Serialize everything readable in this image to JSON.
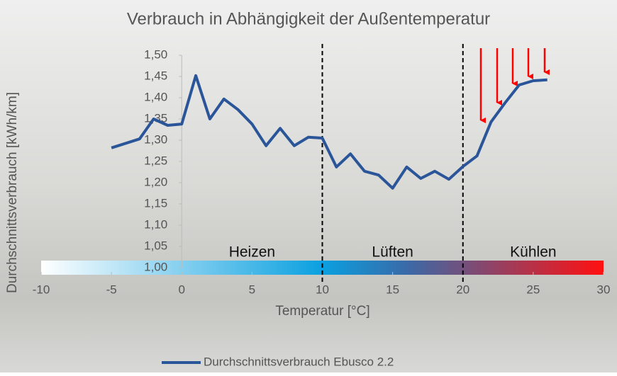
{
  "chart_data": {
    "type": "line",
    "title": "Verbrauch in Abhängigkeit der Außentemperatur",
    "x_label": "Temperatur [°C]",
    "y_label": "Durchschnittsverbrauch [kWh/km]",
    "x": [
      -5,
      -3,
      -2,
      -1,
      0,
      1,
      2,
      3,
      4,
      5,
      6,
      7,
      8,
      9,
      10,
      11,
      12,
      13,
      14,
      15,
      16,
      17,
      18,
      19,
      20,
      21,
      22,
      23,
      24,
      25,
      26
    ],
    "series": [
      {
        "name": "Durchschnittsverbrauch Ebusco 2.2",
        "color": "#2a5599",
        "values": [
          1.282,
          1.303,
          1.35,
          1.335,
          1.338,
          1.452,
          1.35,
          1.397,
          1.372,
          1.338,
          1.287,
          1.328,
          1.287,
          1.307,
          1.305,
          1.237,
          1.268,
          1.227,
          1.218,
          1.187,
          1.237,
          1.21,
          1.227,
          1.208,
          1.238,
          1.263,
          1.343,
          1.388,
          1.43,
          1.44,
          1.442
        ]
      }
    ],
    "xlim": [
      -10,
      30
    ],
    "xticks": [
      -10,
      -5,
      0,
      5,
      10,
      15,
      20,
      25,
      30
    ],
    "ylim": [
      1.0,
      1.5
    ],
    "yticks": [
      {
        "value": 1.0,
        "label": "1,00"
      },
      {
        "value": 1.05,
        "label": "1,05"
      },
      {
        "value": 1.1,
        "label": "1,10"
      },
      {
        "value": 1.15,
        "label": "1,15"
      },
      {
        "value": 1.2,
        "label": "1,20"
      },
      {
        "value": 1.25,
        "label": "1,25"
      },
      {
        "value": 1.3,
        "label": "1,30"
      },
      {
        "value": 1.35,
        "label": "1,35"
      },
      {
        "value": 1.4,
        "label": "1,40"
      },
      {
        "value": 1.45,
        "label": "1,45"
      },
      {
        "value": 1.5,
        "label": "1,50"
      }
    ],
    "vlines": [
      10,
      20
    ],
    "region_labels": [
      {
        "x": 5,
        "text": "Heizen"
      },
      {
        "x": 15,
        "text": "Lüften"
      },
      {
        "x": 25,
        "text": "Kühlen"
      }
    ],
    "legend": "bottom"
  }
}
